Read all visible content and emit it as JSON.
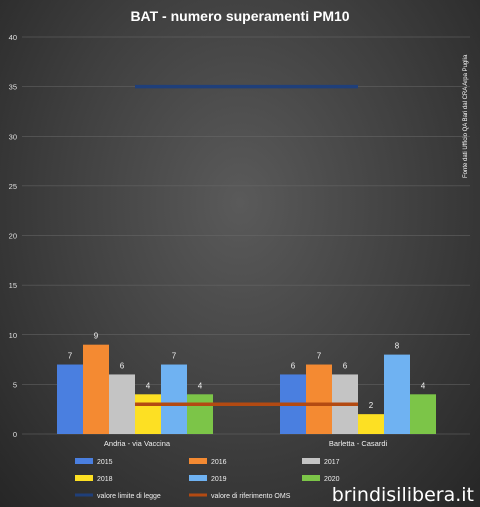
{
  "chart_data": {
    "type": "bar",
    "title": "BAT  -  numero  superamenti  PM10",
    "categories": [
      "Andria - via Vaccina",
      "Barletta - Casardi"
    ],
    "ylim": [
      0,
      40
    ],
    "yticks": [
      0,
      5,
      10,
      15,
      20,
      25,
      30,
      35,
      40
    ],
    "grid": true,
    "legend_position": "bottom",
    "series": [
      {
        "name": "2015",
        "values": [
          7,
          6
        ],
        "color": "#4a7fe0"
      },
      {
        "name": "2016",
        "values": [
          9,
          7
        ],
        "color": "#f48a32"
      },
      {
        "name": "2017",
        "values": [
          6,
          6
        ],
        "color": "#c4c4c4"
      },
      {
        "name": "2018",
        "values": [
          4,
          2
        ],
        "color": "#fde023"
      },
      {
        "name": "2019",
        "values": [
          7,
          8
        ],
        "color": "#6fb2f2"
      },
      {
        "name": "2020",
        "values": [
          4,
          4
        ],
        "color": "#7cc548"
      }
    ],
    "reference_lines": [
      {
        "name": "valore limite di legge",
        "value": 35,
        "color": "#1f3f7a"
      },
      {
        "name": "valore di riferimento OMS",
        "value": 3,
        "color": "#b34a12"
      }
    ],
    "annotation": "Fonte dati Ufficio QA Bari dal CRA Arpa Puglia"
  },
  "watermark": "brindisilibera.it"
}
